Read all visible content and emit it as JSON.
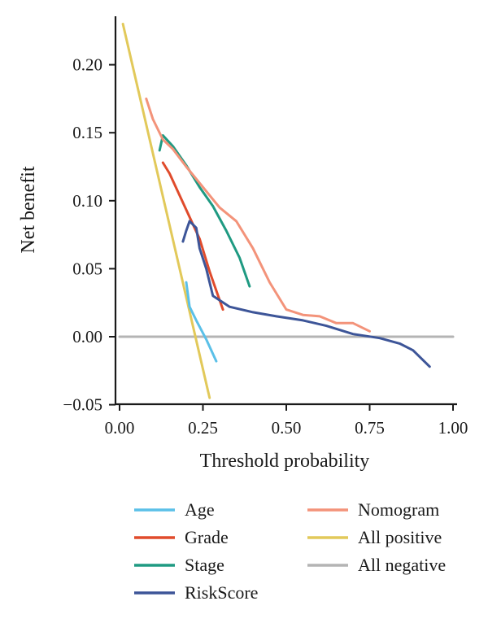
{
  "chart_data": {
    "type": "line",
    "xlabel": "Threshold probability",
    "ylabel": "Net benefit",
    "xlim": [
      0,
      1
    ],
    "ylim": [
      -0.05,
      0.24
    ],
    "x_ticks": [
      0,
      0.25,
      0.5,
      0.75,
      1
    ],
    "x_tick_labels": [
      "0.00",
      "0.25",
      "0.50",
      "0.75",
      "1.00"
    ],
    "y_ticks": [
      -0.05,
      0,
      0.05,
      0.1,
      0.15,
      0.2
    ],
    "y_tick_labels": [
      "−0.05",
      "0.00",
      "0.05",
      "0.10",
      "0.15",
      "0.20"
    ],
    "grid": false,
    "legend_position": "bottom",
    "series": [
      {
        "name": "Age",
        "color": "#5bc0e8",
        "x": [
          0.2,
          0.21,
          0.23,
          0.26,
          0.29
        ],
        "y": [
          0.04,
          0.022,
          0.012,
          -0.002,
          -0.018
        ]
      },
      {
        "name": "Grade",
        "color": "#e04b2c",
        "x": [
          0.13,
          0.15,
          0.18,
          0.21,
          0.24,
          0.27,
          0.31
        ],
        "y": [
          0.128,
          0.12,
          0.104,
          0.088,
          0.072,
          0.048,
          0.02
        ]
      },
      {
        "name": "Stage",
        "color": "#1f9a82",
        "x": [
          0.12,
          0.13,
          0.16,
          0.2,
          0.24,
          0.28,
          0.32,
          0.36,
          0.39
        ],
        "y": [
          0.137,
          0.148,
          0.14,
          0.126,
          0.11,
          0.096,
          0.078,
          0.058,
          0.037
        ]
      },
      {
        "name": "RiskScore",
        "color": "#3d5598",
        "x": [
          0.19,
          0.2,
          0.21,
          0.23,
          0.24,
          0.26,
          0.28,
          0.33,
          0.4,
          0.47,
          0.55,
          0.62,
          0.7,
          0.78,
          0.84,
          0.88,
          0.93
        ],
        "y": [
          0.07,
          0.078,
          0.085,
          0.08,
          0.065,
          0.05,
          0.03,
          0.022,
          0.018,
          0.015,
          0.012,
          0.008,
          0.002,
          -0.001,
          -0.005,
          -0.01,
          -0.022
        ]
      },
      {
        "name": "Nomogram",
        "color": "#f3937a",
        "x": [
          0.08,
          0.1,
          0.13,
          0.16,
          0.2,
          0.25,
          0.3,
          0.35,
          0.4,
          0.45,
          0.5,
          0.55,
          0.6,
          0.65,
          0.7,
          0.75
        ],
        "y": [
          0.175,
          0.16,
          0.145,
          0.138,
          0.125,
          0.11,
          0.095,
          0.085,
          0.065,
          0.04,
          0.02,
          0.016,
          0.015,
          0.01,
          0.01,
          0.004
        ]
      },
      {
        "name": "All positive",
        "color": "#e2c95a",
        "x": [
          0.01,
          0.27
        ],
        "y": [
          0.23,
          -0.045
        ]
      },
      {
        "name": "All negative",
        "color": "#b4b4b4",
        "x": [
          0,
          1
        ],
        "y": [
          0,
          0
        ]
      }
    ]
  }
}
